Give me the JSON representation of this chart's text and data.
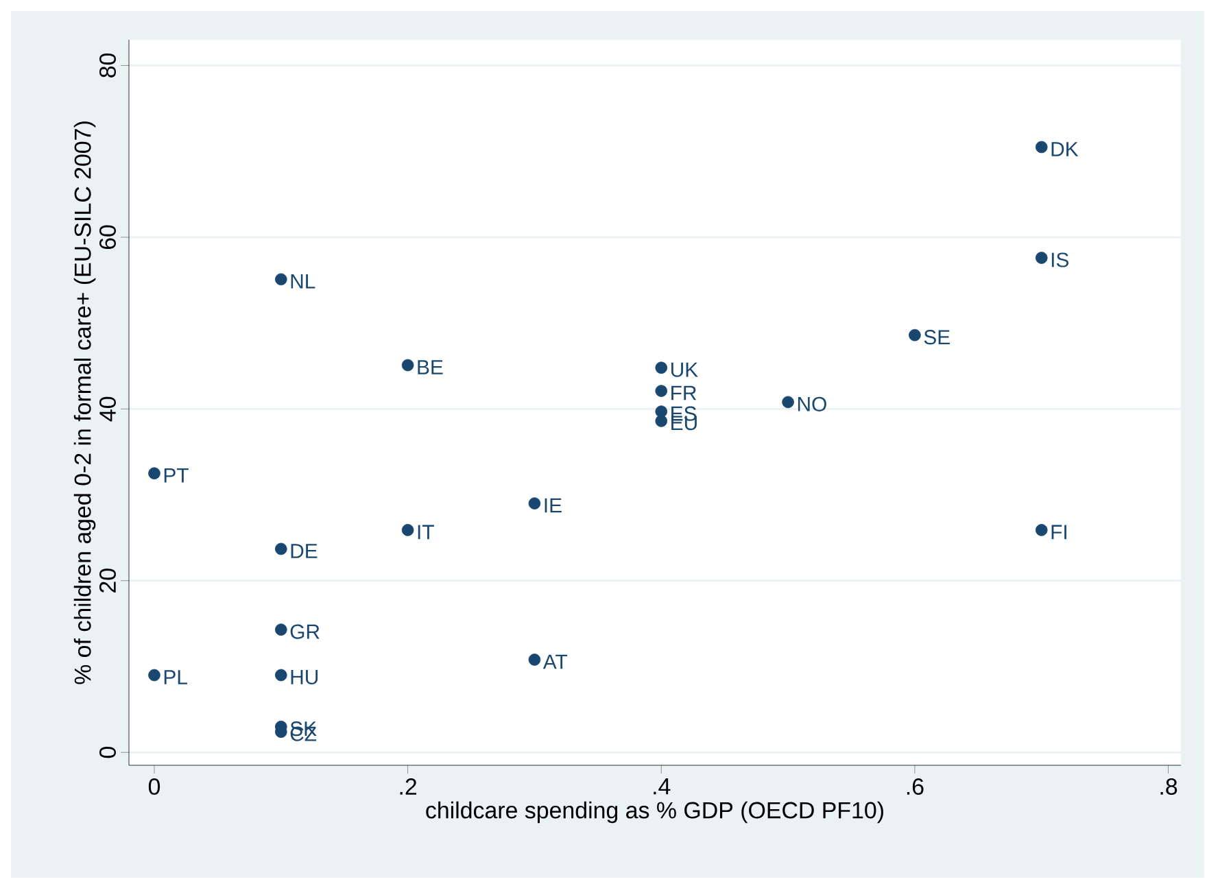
{
  "chart_data": {
    "type": "scatter",
    "xlabel": "childcare spending as % GDP (OECD PF10)",
    "ylabel": "% of children aged 0-2 in formal care+ (EU-SILC 2007)",
    "x": [
      0,
      0,
      0.1,
      0.1,
      0.1,
      0.1,
      0.1,
      0.1,
      0.2,
      0.2,
      0.3,
      0.3,
      0.4,
      0.4,
      0.4,
      0.4,
      0.5,
      0.6,
      0.7,
      0.7,
      0.7
    ],
    "values": [
      32.5,
      9.0,
      55.1,
      23.7,
      14.3,
      9.0,
      3.0,
      2.4,
      45.1,
      25.9,
      29.0,
      10.8,
      44.8,
      42.1,
      39.7,
      38.6,
      40.8,
      48.6,
      70.5,
      57.6,
      25.9
    ],
    "color": "#1a476f",
    "marker": "circle",
    "grid": "y",
    "xlim": [
      -0.02,
      0.81
    ],
    "ylim": [
      -1.5,
      83
    ],
    "xticks": [
      0,
      {
        "value": 0.2,
        "label": ".2"
      },
      {
        "value": 0.4,
        "label": ".4"
      },
      {
        "value": 0.6,
        "label": ".6"
      },
      {
        "value": 0.8,
        "label": ".8"
      }
    ],
    "yticks": [
      0,
      20,
      40,
      60,
      80
    ],
    "annotations": [
      {
        "text": "PT",
        "x": 0,
        "y": 32.5
      },
      {
        "text": "PL",
        "x": 0,
        "y": 9.0
      },
      {
        "text": "NL",
        "x": 0.1,
        "y": 55.1
      },
      {
        "text": "DE",
        "x": 0.1,
        "y": 23.7
      },
      {
        "text": "GR",
        "x": 0.1,
        "y": 14.3
      },
      {
        "text": "HU",
        "x": 0.1,
        "y": 9.0
      },
      {
        "text": "SK",
        "x": 0.1,
        "y": 3.0
      },
      {
        "text": "CZ",
        "x": 0.1,
        "y": 2.4
      },
      {
        "text": "BE",
        "x": 0.2,
        "y": 45.1
      },
      {
        "text": "IT",
        "x": 0.2,
        "y": 25.9
      },
      {
        "text": "IE",
        "x": 0.3,
        "y": 29.0
      },
      {
        "text": "AT",
        "x": 0.3,
        "y": 10.8
      },
      {
        "text": "UK",
        "x": 0.4,
        "y": 44.8
      },
      {
        "text": "FR",
        "x": 0.4,
        "y": 42.1
      },
      {
        "text": "ES",
        "x": 0.4,
        "y": 39.7
      },
      {
        "text": "EU",
        "x": 0.4,
        "y": 38.6
      },
      {
        "text": "NO",
        "x": 0.5,
        "y": 40.8
      },
      {
        "text": "SE",
        "x": 0.6,
        "y": 48.6
      },
      {
        "text": "DK",
        "x": 0.7,
        "y": 70.5
      },
      {
        "text": "IS",
        "x": 0.7,
        "y": 57.6
      },
      {
        "text": "FI",
        "x": 0.7,
        "y": 25.9
      }
    ]
  }
}
